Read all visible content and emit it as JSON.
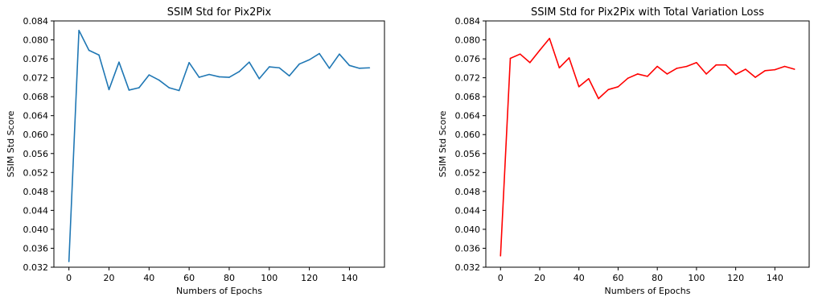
{
  "chart_data": [
    {
      "type": "line",
      "title": "SSIM Std for Pix2Pix",
      "xlabel": "Numbers of Epochs",
      "ylabel": "SSIM Std Score",
      "xlim": [
        -7.5,
        157.5
      ],
      "ylim": [
        0.032,
        0.084
      ],
      "xticks": [
        "0",
        "20",
        "40",
        "60",
        "80",
        "100",
        "120",
        "140"
      ],
      "yticks": [
        "0.032",
        "0.036",
        "0.040",
        "0.044",
        "0.048",
        "0.052",
        "0.056",
        "0.060",
        "0.064",
        "0.068",
        "0.072",
        "0.076",
        "0.080",
        "0.084"
      ],
      "grid": false,
      "color": "#1f77b4",
      "series": [
        {
          "x": [
            0,
            5,
            10,
            15,
            20,
            25,
            30,
            35,
            40,
            45,
            50,
            55,
            60,
            65,
            70,
            75,
            80,
            85,
            90,
            95,
            100,
            105,
            110,
            115,
            120,
            125,
            130,
            135,
            140,
            145,
            150
          ],
          "values": [
            0.0332,
            0.082,
            0.0778,
            0.0768,
            0.0695,
            0.0753,
            0.0694,
            0.0699,
            0.0726,
            0.0715,
            0.0699,
            0.0693,
            0.0752,
            0.0721,
            0.0727,
            0.0722,
            0.0721,
            0.0733,
            0.0753,
            0.0718,
            0.0743,
            0.0741,
            0.0724,
            0.0749,
            0.0758,
            0.0771,
            0.074,
            0.077,
            0.0746,
            0.074,
            0.0741
          ]
        }
      ]
    },
    {
      "type": "line",
      "title": "SSIM Std for Pix2Pix with Total Variation Loss",
      "xlabel": "Numbers of Epochs",
      "ylabel": "SSIM Std Score",
      "xlim": [
        -7.5,
        157.5
      ],
      "ylim": [
        0.032,
        0.084
      ],
      "xticks": [
        "0",
        "20",
        "40",
        "60",
        "80",
        "100",
        "120",
        "140"
      ],
      "yticks": [
        "0.032",
        "0.036",
        "0.040",
        "0.044",
        "0.048",
        "0.052",
        "0.056",
        "0.060",
        "0.064",
        "0.068",
        "0.072",
        "0.076",
        "0.080",
        "0.084"
      ],
      "grid": false,
      "color": "#ff0000",
      "series": [
        {
          "x": [
            0,
            5,
            10,
            15,
            20,
            25,
            30,
            35,
            40,
            45,
            50,
            55,
            60,
            65,
            70,
            75,
            80,
            85,
            90,
            95,
            100,
            105,
            110,
            115,
            120,
            125,
            130,
            135,
            140,
            145,
            150
          ],
          "values": [
            0.0344,
            0.0761,
            0.077,
            0.0752,
            0.0778,
            0.0803,
            0.0741,
            0.0762,
            0.0701,
            0.0718,
            0.0676,
            0.0695,
            0.0701,
            0.0719,
            0.0728,
            0.0723,
            0.0744,
            0.0728,
            0.074,
            0.0744,
            0.0752,
            0.0728,
            0.0747,
            0.0747,
            0.0727,
            0.0738,
            0.0721,
            0.0735,
            0.0737,
            0.0744,
            0.0738
          ]
        }
      ]
    }
  ]
}
